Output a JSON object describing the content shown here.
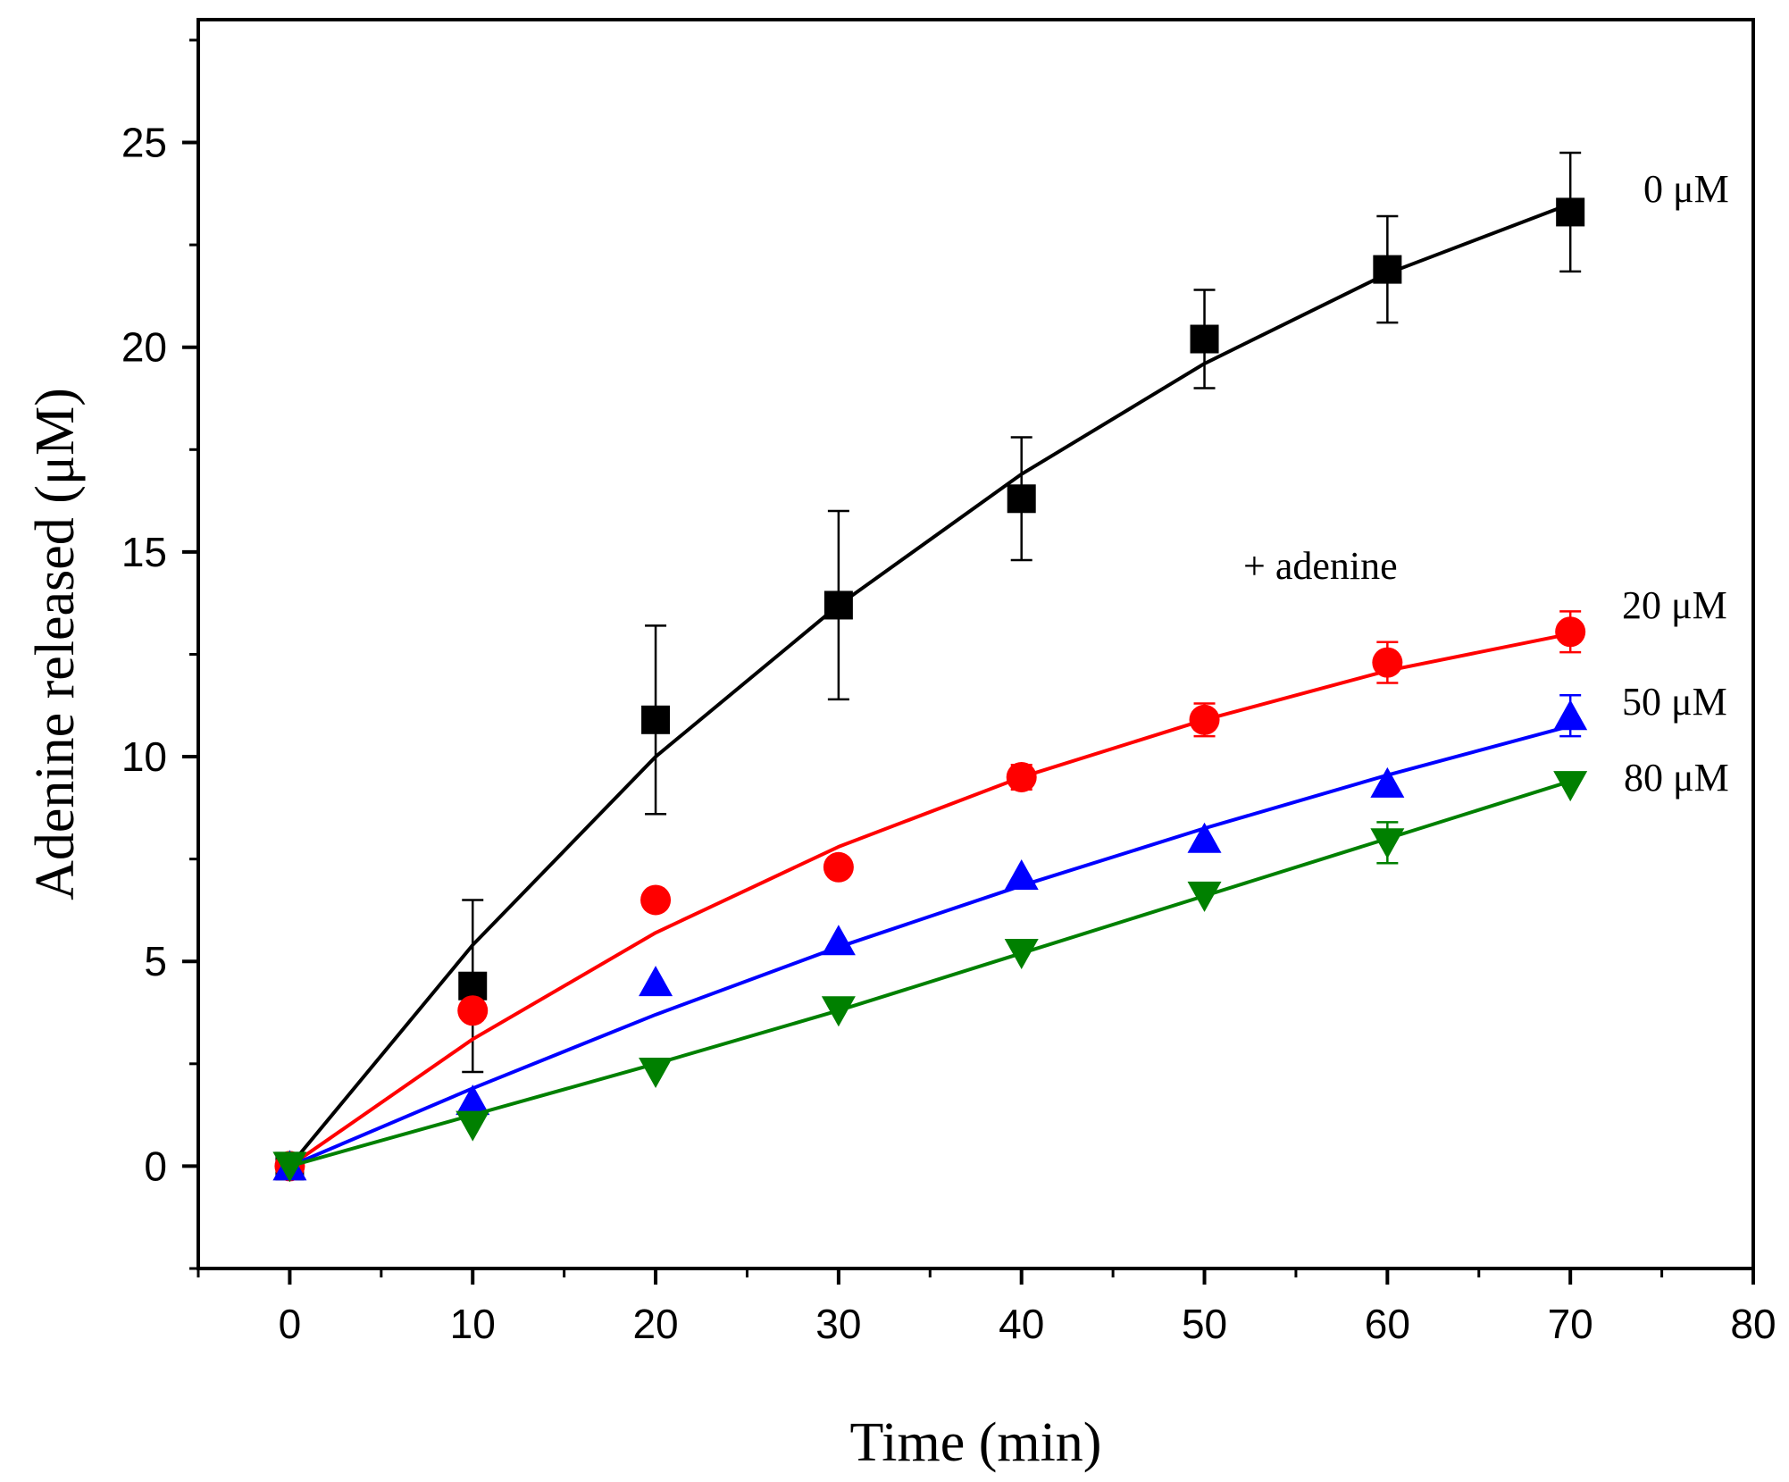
{
  "chart_data": {
    "type": "scatter",
    "xlabel": "Time (min)",
    "ylabel": "Adenine released (μM)",
    "xlim": [
      -5,
      80
    ],
    "ylim": [
      -2.5,
      28
    ],
    "xticks": [
      0,
      10,
      20,
      30,
      40,
      50,
      60,
      70,
      80
    ],
    "yticks": [
      0,
      5,
      10,
      15,
      20,
      25
    ],
    "grid": false,
    "annotations": [
      {
        "text": "+ adenine"
      }
    ],
    "series": [
      {
        "name": "0 μM",
        "color": "#000000",
        "marker": "square",
        "x": [
          0,
          10,
          20,
          30,
          40,
          50,
          60,
          70
        ],
        "y": [
          0,
          4.4,
          10.9,
          13.7,
          16.3,
          20.2,
          21.9,
          23.3
        ],
        "yerr": [
          0,
          2.1,
          2.3,
          2.3,
          1.5,
          1.2,
          1.3,
          1.45
        ],
        "fit": [
          0,
          5.4,
          10.0,
          13.7,
          16.9,
          19.6,
          21.8,
          23.5
        ]
      },
      {
        "name": "20 μM",
        "color": "#ff0000",
        "marker": "circle",
        "x": [
          0,
          10,
          20,
          30,
          40,
          50,
          60,
          70
        ],
        "y": [
          0,
          3.8,
          6.5,
          7.3,
          9.5,
          10.9,
          12.3,
          13.05
        ],
        "yerr": [
          0,
          0,
          0,
          0,
          0.3,
          0.4,
          0.5,
          0.5
        ],
        "fit": [
          0,
          3.1,
          5.7,
          7.8,
          9.5,
          10.9,
          12.1,
          13.0
        ]
      },
      {
        "name": "50 μM",
        "color": "#0000ff",
        "marker": "triangle-up",
        "x": [
          0,
          10,
          20,
          30,
          40,
          50,
          60,
          70
        ],
        "y": [
          0,
          1.6,
          4.5,
          5.5,
          7.1,
          8.0,
          9.35,
          11.0
        ],
        "yerr": [
          0,
          0,
          0,
          0,
          0,
          0,
          0,
          0.5
        ],
        "fit": [
          0,
          1.9,
          3.7,
          5.35,
          6.85,
          8.25,
          9.55,
          10.75
        ]
      },
      {
        "name": "80 μM",
        "color": "#008000",
        "marker": "triangle-down",
        "x": [
          0,
          10,
          20,
          30,
          40,
          50,
          60,
          70
        ],
        "y": [
          0,
          1.0,
          2.3,
          3.8,
          5.2,
          6.6,
          7.9,
          9.3
        ],
        "yerr": [
          0,
          0,
          0,
          0,
          0,
          0,
          0.5,
          0
        ],
        "fit": [
          0,
          1.25,
          2.5,
          3.8,
          5.2,
          6.6,
          8.0,
          9.4
        ]
      }
    ]
  }
}
